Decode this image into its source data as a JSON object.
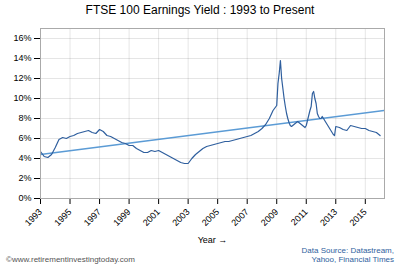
{
  "chart_data": {
    "type": "line",
    "title": "FTSE 100 Earnings Yield : 1993 to Present",
    "xlabel": "Year",
    "xlim": [
      1993.0,
      2016.3
    ],
    "ylim": [
      0,
      0.17
    ],
    "xticks": [
      1993,
      1995,
      1997,
      1999,
      2001,
      2003,
      2005,
      2007,
      2009,
      2011,
      2013,
      2015
    ],
    "yticks": [
      {
        "value": 0,
        "label": "0%"
      },
      {
        "value": 0.02,
        "label": "2%"
      },
      {
        "value": 0.04,
        "label": "4%"
      },
      {
        "value": 0.06,
        "label": "6%"
      },
      {
        "value": 0.08,
        "label": "8%"
      },
      {
        "value": 0.1,
        "label": "10%"
      },
      {
        "value": 0.12,
        "label": "12%"
      },
      {
        "value": 0.14,
        "label": "14%"
      },
      {
        "value": 0.16,
        "label": "16%"
      }
    ],
    "grid": true,
    "annotations": [
      "©www.retirementinvestingtoday.com",
      "Data Source: Datastream,\nYahoo, Financial Times"
    ],
    "series": [
      {
        "color": "#2f5f9e",
        "x": [
          1993.0,
          1993.25,
          1993.5,
          1993.75,
          1994.0,
          1994.25,
          1994.5,
          1994.75,
          1995.0,
          1995.25,
          1995.5,
          1995.75,
          1996.0,
          1996.25,
          1996.5,
          1996.75,
          1997.0,
          1997.25,
          1997.5,
          1997.75,
          1998.0,
          1998.25,
          1998.5,
          1998.75,
          1999.0,
          1999.25,
          1999.5,
          1999.75,
          2000.0,
          2000.25,
          2000.5,
          2000.75,
          2001.0,
          2001.25,
          2001.5,
          2001.75,
          2002.0,
          2002.25,
          2002.5,
          2002.75,
          2003.0,
          2003.25,
          2003.5,
          2003.75,
          2004.0,
          2004.25,
          2004.5,
          2004.75,
          2005.0,
          2005.25,
          2005.5,
          2005.75,
          2006.0,
          2006.25,
          2006.5,
          2006.75,
          2007.0,
          2007.25,
          2007.5,
          2007.75,
          2008.0,
          2008.25,
          2008.5,
          2008.75,
          2009.0,
          2009.083,
          2009.167,
          2009.25,
          2009.333,
          2009.417,
          2009.5,
          2009.583,
          2009.667,
          2009.75,
          2009.833,
          2009.917,
          2010.0,
          2010.083,
          2010.167,
          2010.25,
          2010.333,
          2010.417,
          2010.5,
          2010.583,
          2010.667,
          2010.75,
          2010.833,
          2010.917,
          2011.0,
          2011.083,
          2011.167,
          2011.25,
          2011.333,
          2011.417,
          2011.5,
          2011.583,
          2011.667,
          2011.75,
          2011.833,
          2011.917,
          2012.0,
          2012.083,
          2012.167,
          2012.25,
          2012.333,
          2012.417,
          2012.5,
          2012.583,
          2012.667,
          2012.75,
          2012.833,
          2012.917,
          2013.0,
          2013.25,
          2013.5,
          2013.75,
          2014.0,
          2014.25,
          2014.5,
          2014.75,
          2015.0,
          2015.25,
          2015.5,
          2015.75,
          2016.0
        ],
        "values": [
          0.047,
          0.042,
          0.041,
          0.044,
          0.051,
          0.059,
          0.061,
          0.06,
          0.062,
          0.063,
          0.065,
          0.066,
          0.067,
          0.068,
          0.066,
          0.065,
          0.069,
          0.067,
          0.063,
          0.062,
          0.06,
          0.058,
          0.056,
          0.055,
          0.053,
          0.053,
          0.05,
          0.048,
          0.046,
          0.046,
          0.048,
          0.047,
          0.048,
          0.046,
          0.044,
          0.042,
          0.04,
          0.038,
          0.036,
          0.035,
          0.035,
          0.04,
          0.044,
          0.047,
          0.05,
          0.052,
          0.053,
          0.054,
          0.055,
          0.056,
          0.057,
          0.057,
          0.058,
          0.059,
          0.06,
          0.061,
          0.062,
          0.063,
          0.065,
          0.067,
          0.07,
          0.074,
          0.08,
          0.088,
          0.093,
          0.115,
          0.125,
          0.138,
          0.12,
          0.11,
          0.1,
          0.092,
          0.085,
          0.08,
          0.076,
          0.073,
          0.072,
          0.073,
          0.074,
          0.075,
          0.076,
          0.077,
          0.076,
          0.075,
          0.074,
          0.073,
          0.072,
          0.071,
          0.073,
          0.078,
          0.083,
          0.088,
          0.092,
          0.105,
          0.107,
          0.1,
          0.095,
          0.085,
          0.082,
          0.08,
          0.08,
          0.082,
          0.08,
          0.078,
          0.076,
          0.074,
          0.072,
          0.07,
          0.068,
          0.066,
          0.064,
          0.063,
          0.072,
          0.071,
          0.069,
          0.068,
          0.073,
          0.072,
          0.071,
          0.07,
          0.07,
          0.068,
          0.067,
          0.066,
          0.063
        ]
      },
      {
        "color": "#5b9bd5",
        "x": [
          1993.0,
          2016.3
        ],
        "values": [
          0.044,
          0.088
        ]
      }
    ]
  }
}
